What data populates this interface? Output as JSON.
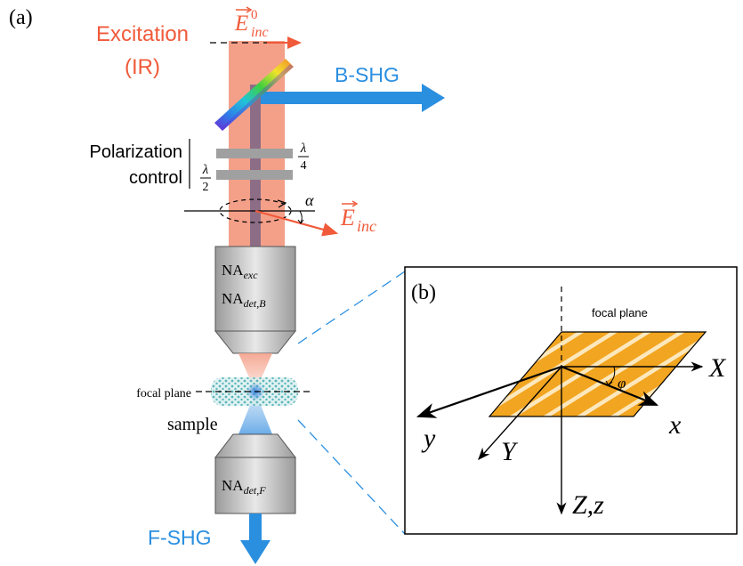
{
  "panel_a": {
    "label": "(a)",
    "excitation_line1": "Excitation",
    "excitation_line2": "(IR)",
    "e_inc0_base": "E",
    "e_inc0_sup": "0",
    "e_inc0_sub": "inc",
    "bshg": "B-SHG",
    "polarization_line1": "Polarization",
    "polarization_line2": "control",
    "lambda_symbol": "λ",
    "quarter_den": "4",
    "half_den": "2",
    "alpha": "α",
    "e_inc_base": "E",
    "e_inc_sub": "inc",
    "objective_top_line1_base": "NA",
    "objective_top_line1_sub": "exc",
    "objective_top_line2_base": "NA",
    "objective_top_line2_sub": "det,B",
    "focal_plane": "focal plane",
    "sample": "sample",
    "objective_bottom_base": "NA",
    "objective_bottom_sub": "det,F",
    "fshg": "F-SHG"
  },
  "panel_b": {
    "label": "(b)",
    "focal_plane": "focal plane",
    "axis_X": "X",
    "axis_x": "x",
    "axis_y": "y",
    "axis_Y": "Y",
    "axis_Zz": "Z,z",
    "phi": "φ"
  },
  "colors": {
    "beam": "#f4a089",
    "excitation_text": "#f05a3a",
    "shg_blue": "#2b8fe0",
    "waveplate": "#a0a0a0",
    "stripe_orange": "#f2a520",
    "objective_gray": "#b8b8b8"
  }
}
